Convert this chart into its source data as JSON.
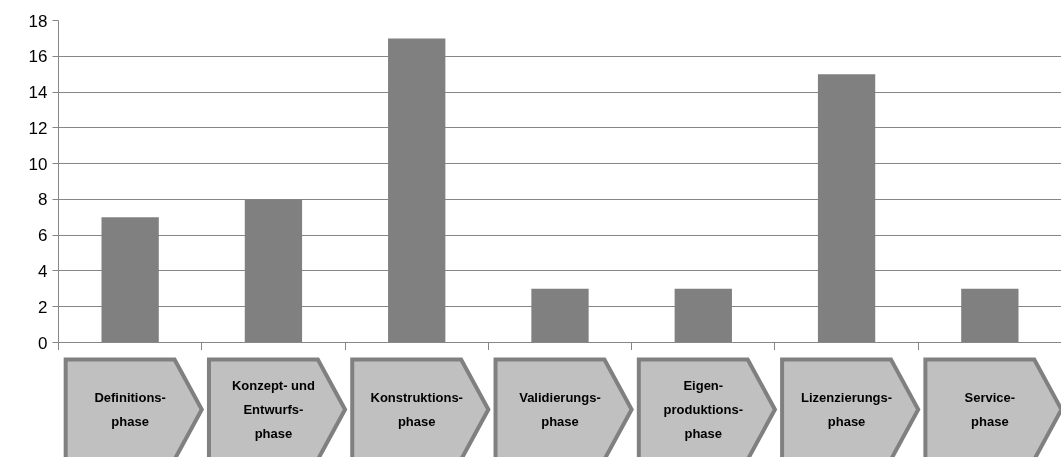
{
  "chart_data": {
    "type": "bar",
    "categories": [
      "Definitions-\nphase",
      "Konzept- und\nEntwurfs-\nphase",
      "Konstruktions-\nphase",
      "Validierungs-\nphase",
      "Eigen-\nproduktions-\nphase",
      "Lizenzierungs-\nphase",
      "Service-\nphase"
    ],
    "values": [
      7,
      8,
      17,
      3,
      3,
      15,
      3
    ],
    "color": "#808080",
    "ylim": [
      0,
      18
    ],
    "yticks": [
      0,
      2,
      4,
      6,
      8,
      10,
      12,
      14,
      16,
      18
    ],
    "grid": "y"
  }
}
